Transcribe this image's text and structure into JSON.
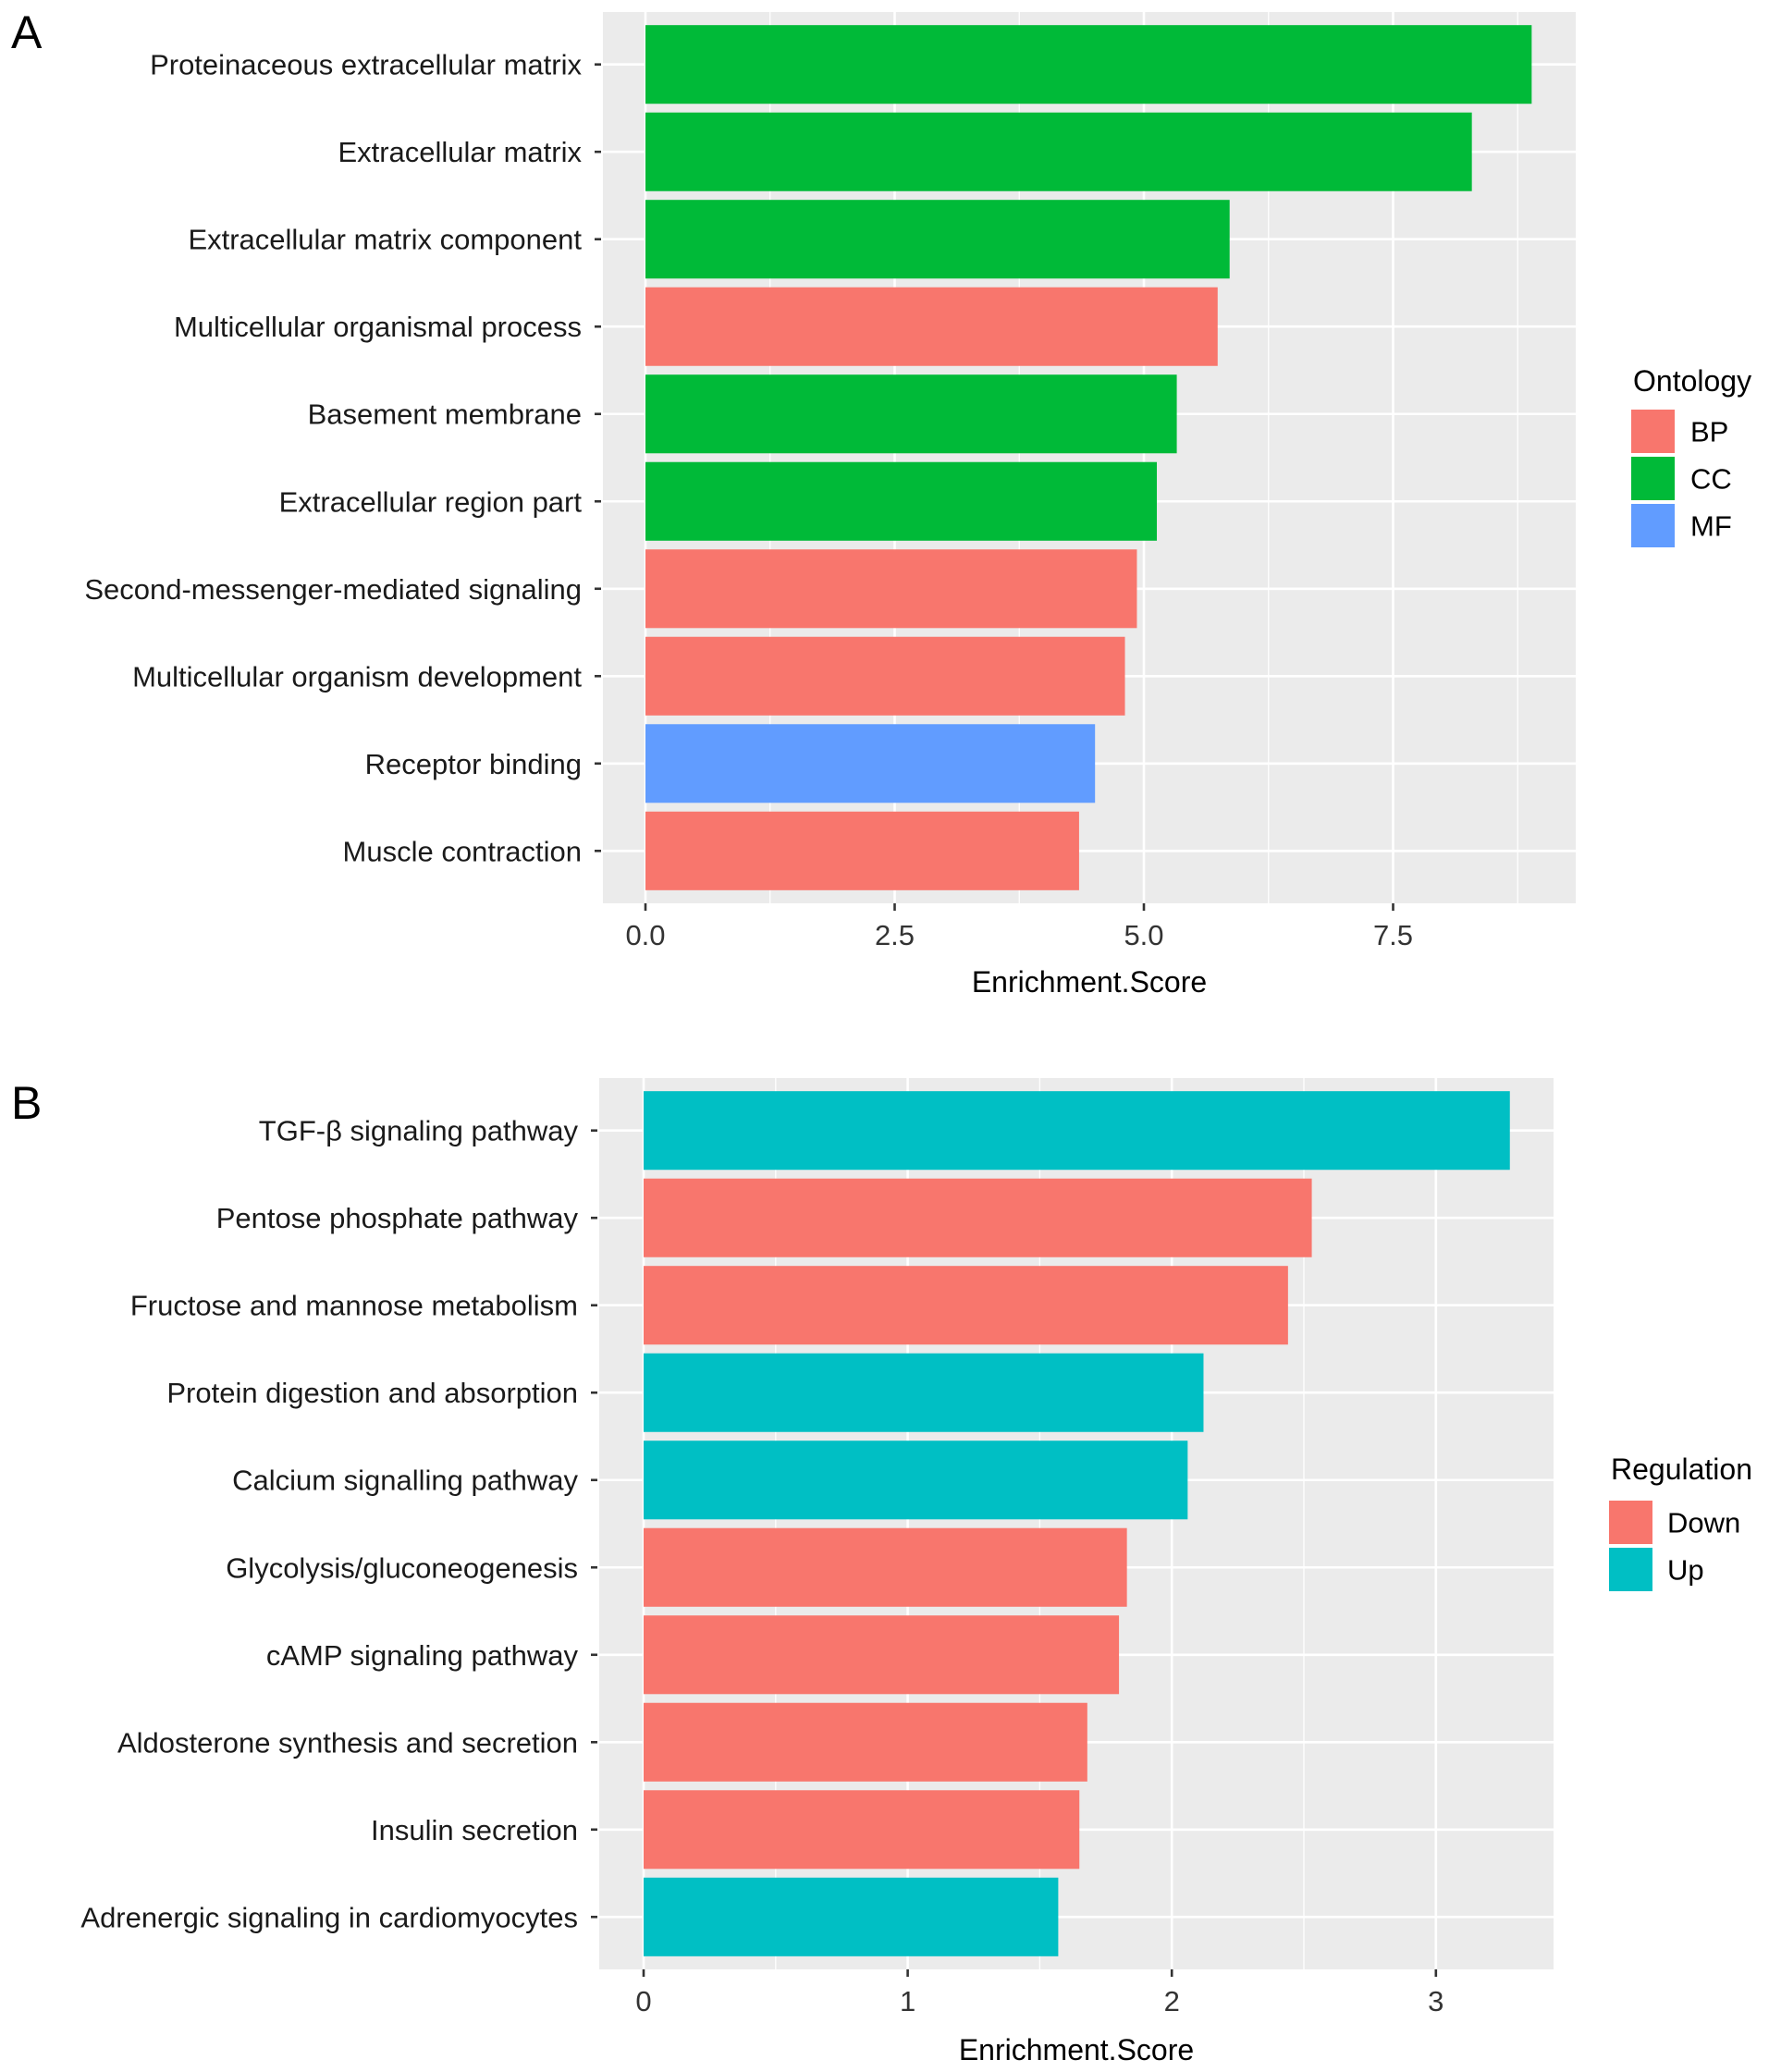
{
  "figure": {
    "panels": [
      "A",
      "B"
    ]
  },
  "chart_data": [
    {
      "type": "bar",
      "orientation": "horizontal",
      "panel_label": "A",
      "title": "",
      "xlabel": "Enrichment.Score",
      "ylabel": "",
      "xlim": [
        0,
        9.3
      ],
      "x_ticks": [
        0.0,
        2.5,
        5.0,
        7.5
      ],
      "x_tick_labels": [
        "0.0",
        "2.5",
        "5.0",
        "7.5"
      ],
      "x_minor_ticks": [
        1.25,
        3.75,
        6.25,
        8.75
      ],
      "grid": true,
      "legend": {
        "title": "Ontology",
        "position": "right",
        "entries": [
          {
            "label": "BP",
            "color": "#F8766D"
          },
          {
            "label": "CC",
            "color": "#00BA38"
          },
          {
            "label": "MF",
            "color": "#619CFF"
          }
        ]
      },
      "categories": [
        "Proteinaceous extracellular matrix",
        "Extracellular matrix",
        "Extracellular matrix component",
        "Multicellular organismal process",
        "Basement membrane",
        "Extracellular region part",
        "Second-messenger-mediated signaling",
        "Multicellular organism development",
        "Receptor binding",
        "Muscle contraction"
      ],
      "values": [
        8.89,
        8.29,
        5.86,
        5.74,
        5.33,
        5.13,
        4.93,
        4.81,
        4.51,
        4.35
      ],
      "groups": [
        "CC",
        "CC",
        "CC",
        "BP",
        "CC",
        "CC",
        "BP",
        "BP",
        "MF",
        "BP"
      ]
    },
    {
      "type": "bar",
      "orientation": "horizontal",
      "panel_label": "B",
      "title": "",
      "xlabel": "Enrichment.Score",
      "ylabel": "",
      "xlim": [
        0,
        3.44
      ],
      "x_ticks": [
        0,
        1,
        2,
        3
      ],
      "x_tick_labels": [
        "0",
        "1",
        "2",
        "3"
      ],
      "x_minor_ticks": [
        0.5,
        1.5,
        2.5
      ],
      "grid": true,
      "legend": {
        "title": "Regulation",
        "position": "right",
        "entries": [
          {
            "label": "Down",
            "color": "#F8766D"
          },
          {
            "label": "Up",
            "color": "#00BFC4"
          }
        ]
      },
      "categories": [
        "TGF-β signaling pathway",
        "Pentose phosphate pathway",
        "Fructose and mannose metabolism",
        "Protein digestion and absorption",
        "Calcium signalling pathway",
        "Glycolysis/gluconeogenesis",
        "cAMP signaling pathway",
        "Aldosterone synthesis and secretion",
        "Insulin secretion",
        "Adrenergic signaling in cardiomyocytes"
      ],
      "values": [
        3.28,
        2.53,
        2.44,
        2.12,
        2.06,
        1.83,
        1.8,
        1.68,
        1.65,
        1.57
      ],
      "groups": [
        "Up",
        "Down",
        "Down",
        "Up",
        "Up",
        "Down",
        "Down",
        "Down",
        "Down",
        "Up"
      ]
    }
  ]
}
